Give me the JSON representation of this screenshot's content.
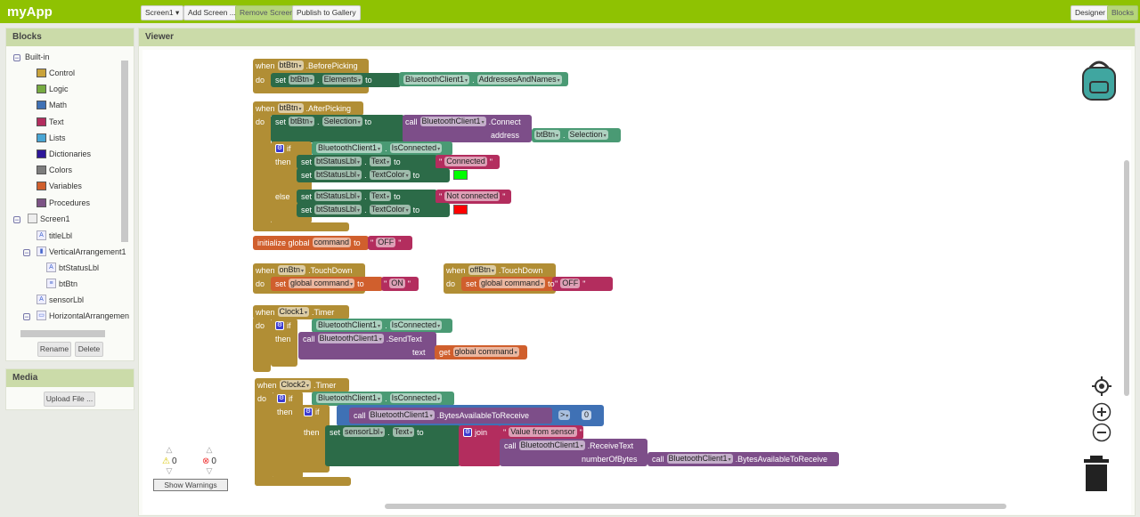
{
  "app": {
    "title": "myApp"
  },
  "toolbar": {
    "screen": "Screen1",
    "add_screen": "Add Screen ...",
    "remove_screen": "Remove Screen",
    "publish": "Publish to Gallery",
    "designer": "Designer",
    "blocks": "Blocks"
  },
  "blocks_panel": {
    "title": "Blocks",
    "builtin": "Built-in",
    "categories": [
      {
        "label": "Control",
        "color": "#c9a33b"
      },
      {
        "label": "Logic",
        "color": "#77ab41"
      },
      {
        "label": "Math",
        "color": "#3f71b5"
      },
      {
        "label": "Text",
        "color": "#b32d5e"
      },
      {
        "label": "Lists",
        "color": "#49a6d4"
      },
      {
        "label": "Dictionaries",
        "color": "#2d1799"
      },
      {
        "label": "Colors",
        "color": "#7d7d7d"
      },
      {
        "label": "Variables",
        "color": "#d05f2d"
      },
      {
        "label": "Procedures",
        "color": "#7c5385"
      }
    ],
    "screen": "Screen1",
    "components": [
      "titleLbl",
      "VerticalArrangement1",
      "btStatusLbl",
      "btBtn",
      "sensorLbl",
      "HorizontalArrangemen"
    ],
    "rename": "Rename",
    "delete": "Delete"
  },
  "media": {
    "title": "Media",
    "upload": "Upload File ..."
  },
  "viewer": {
    "title": "Viewer"
  },
  "warnings": {
    "warning_count": "0",
    "error_count": "0",
    "show_warnings": "Show Warnings"
  },
  "rows": [
    {
      "tokens": [
        [
          "kw",
          "when"
        ],
        [
          "dd",
          "btBtn"
        ],
        [
          "kw",
          ".BeforePicking"
        ]
      ]
    },
    {
      "tokens": [
        [
          "kw",
          "do"
        ]
      ]
    },
    {
      "tokens": [
        [
          "kw",
          "set"
        ],
        [
          "dd",
          "btBtn"
        ],
        [
          "kw",
          "."
        ],
        [
          "dd",
          "Elements"
        ],
        [
          "kw",
          "to"
        ]
      ]
    },
    {
      "tokens": [
        [
          "dd",
          "BluetoothClient1"
        ],
        [
          "kw",
          "."
        ],
        [
          "dd",
          "AddressesAndNames"
        ]
      ]
    },
    {
      "tokens": [
        [
          "kw",
          "when"
        ],
        [
          "dd",
          "btBtn"
        ],
        [
          "kw",
          ".AfterPicking"
        ]
      ]
    },
    {
      "tokens": [
        [
          "kw",
          "do"
        ]
      ]
    },
    {
      "tokens": [
        [
          "kw",
          "set"
        ],
        [
          "dd",
          "btBtn"
        ],
        [
          "kw",
          "."
        ],
        [
          "dd",
          "Selection"
        ],
        [
          "kw",
          "to"
        ]
      ]
    },
    {
      "tokens": [
        [
          "kw",
          "call"
        ],
        [
          "dd",
          "BluetoothClient1"
        ],
        [
          "kw",
          ".Connect"
        ]
      ]
    },
    {
      "tokens": [
        [
          "kw",
          "address"
        ]
      ]
    },
    {
      "tokens": [
        [
          "dd",
          "btBtn"
        ],
        [
          "kw",
          "."
        ],
        [
          "dd",
          "Selection"
        ]
      ]
    },
    {
      "tokens": [
        [
          "gear",
          ""
        ],
        [
          "kw",
          "if"
        ]
      ]
    },
    {
      "tokens": [
        [
          "dd",
          "BluetoothClient1"
        ],
        [
          "kw",
          "."
        ],
        [
          "dd",
          "IsConnected"
        ]
      ]
    },
    {
      "tokens": [
        [
          "kw",
          "then"
        ]
      ]
    },
    {
      "tokens": [
        [
          "kw",
          "set"
        ],
        [
          "dd",
          "btStatusLbl"
        ],
        [
          "kw",
          "."
        ],
        [
          "dd",
          "Text"
        ],
        [
          "kw",
          "to"
        ]
      ]
    },
    {
      "tokens": [
        [
          "kw",
          "\""
        ],
        [
          "str",
          "Connected"
        ],
        [
          "kw",
          "\""
        ]
      ]
    },
    {
      "tokens": [
        [
          "kw",
          "set"
        ],
        [
          "dd",
          "btStatusLbl"
        ],
        [
          "kw",
          "."
        ],
        [
          "dd",
          "TextColor"
        ],
        [
          "kw",
          "to"
        ]
      ]
    },
    {
      "tokens": [
        [
          "color",
          "#00ff00"
        ]
      ]
    },
    {
      "tokens": [
        [
          "kw",
          "else"
        ]
      ]
    },
    {
      "tokens": [
        [
          "kw",
          "set"
        ],
        [
          "dd",
          "btStatusLbl"
        ],
        [
          "kw",
          "."
        ],
        [
          "dd",
          "Text"
        ],
        [
          "kw",
          "to"
        ]
      ]
    },
    {
      "tokens": [
        [
          "kw",
          "\""
        ],
        [
          "str",
          "Not connected"
        ],
        [
          "kw",
          "\""
        ]
      ]
    },
    {
      "tokens": [
        [
          "kw",
          "set"
        ],
        [
          "dd",
          "btStatusLbl"
        ],
        [
          "kw",
          "."
        ],
        [
          "dd",
          "TextColor"
        ],
        [
          "kw",
          "to"
        ]
      ]
    },
    {
      "tokens": [
        [
          "color",
          "#ff0000"
        ]
      ]
    },
    {
      "tokens": [
        [
          "kw",
          "initialize global"
        ],
        [
          "str",
          "command"
        ],
        [
          "kw",
          "to"
        ]
      ]
    },
    {
      "tokens": [
        [
          "kw",
          "\""
        ],
        [
          "str",
          "OFF"
        ],
        [
          "kw",
          "\""
        ]
      ]
    },
    {
      "tokens": [
        [
          "kw",
          "when"
        ],
        [
          "dd",
          "onBtn"
        ],
        [
          "kw",
          ".TouchDown"
        ]
      ]
    },
    {
      "tokens": [
        [
          "kw",
          "do"
        ]
      ]
    },
    {
      "tokens": [
        [
          "kw",
          "set"
        ],
        [
          "dd",
          "global command"
        ],
        [
          "kw",
          "to"
        ]
      ]
    },
    {
      "tokens": [
        [
          "kw",
          "\""
        ],
        [
          "str",
          "ON"
        ],
        [
          "kw",
          "\""
        ]
      ]
    },
    {
      "tokens": [
        [
          "kw",
          "when"
        ],
        [
          "dd",
          "offBtn"
        ],
        [
          "kw",
          ".TouchDown"
        ]
      ]
    },
    {
      "tokens": [
        [
          "kw",
          "do"
        ]
      ]
    },
    {
      "tokens": [
        [
          "kw",
          "set"
        ],
        [
          "dd",
          "global command"
        ],
        [
          "kw",
          "to"
        ]
      ]
    },
    {
      "tokens": [
        [
          "kw",
          "\""
        ],
        [
          "str",
          "OFF"
        ],
        [
          "kw",
          "\""
        ]
      ]
    },
    {
      "tokens": [
        [
          "kw",
          "when"
        ],
        [
          "dd",
          "Clock1"
        ],
        [
          "kw",
          ".Timer"
        ]
      ]
    },
    {
      "tokens": [
        [
          "kw",
          "do"
        ]
      ]
    },
    {
      "tokens": [
        [
          "gear",
          ""
        ],
        [
          "kw",
          "if"
        ]
      ]
    },
    {
      "tokens": [
        [
          "dd",
          "BluetoothClient1"
        ],
        [
          "kw",
          "."
        ],
        [
          "dd",
          "IsConnected"
        ]
      ]
    },
    {
      "tokens": [
        [
          "kw",
          "then"
        ]
      ]
    },
    {
      "tokens": [
        [
          "kw",
          "call"
        ],
        [
          "dd",
          "BluetoothClient1"
        ],
        [
          "kw",
          ".SendText"
        ]
      ]
    },
    {
      "tokens": [
        [
          "kw",
          "text"
        ]
      ]
    },
    {
      "tokens": [
        [
          "kw",
          "get"
        ],
        [
          "dd",
          "global command"
        ]
      ]
    },
    {
      "tokens": [
        [
          "kw",
          "when"
        ],
        [
          "dd",
          "Clock2"
        ],
        [
          "kw",
          ".Timer"
        ]
      ]
    },
    {
      "tokens": [
        [
          "kw",
          "do"
        ]
      ]
    },
    {
      "tokens": [
        [
          "gear",
          ""
        ],
        [
          "kw",
          "if"
        ]
      ]
    },
    {
      "tokens": [
        [
          "dd",
          "BluetoothClient1"
        ],
        [
          "kw",
          "."
        ],
        [
          "dd",
          "IsConnected"
        ]
      ]
    },
    {
      "tokens": [
        [
          "kw",
          "then"
        ]
      ]
    },
    {
      "tokens": [
        [
          "gear",
          ""
        ],
        [
          "kw",
          "if"
        ]
      ]
    },
    {
      "tokens": [
        [
          "dd",
          ">"
        ]
      ]
    },
    {
      "tokens": [
        [
          "num",
          "0"
        ]
      ]
    },
    {
      "tokens": [
        [
          "kw",
          "call"
        ],
        [
          "dd",
          "BluetoothClient1"
        ],
        [
          "kw",
          ".BytesAvailableToReceive"
        ]
      ]
    },
    {
      "tokens": [
        [
          "kw",
          "then"
        ]
      ]
    },
    {
      "tokens": [
        [
          "kw",
          "set"
        ],
        [
          "dd",
          "sensorLbl"
        ],
        [
          "kw",
          "."
        ],
        [
          "dd",
          "Text"
        ],
        [
          "kw",
          "to"
        ]
      ]
    },
    {
      "tokens": [
        [
          "gear",
          ""
        ],
        [
          "kw",
          "join"
        ]
      ]
    },
    {
      "tokens": [
        [
          "kw",
          "\""
        ],
        [
          "str",
          "Value from sensor"
        ],
        [
          "kw",
          "\""
        ]
      ]
    },
    {
      "tokens": [
        [
          "kw",
          "call"
        ],
        [
          "dd",
          "BluetoothClient1"
        ],
        [
          "kw",
          ".ReceiveText"
        ]
      ]
    },
    {
      "tokens": [
        [
          "kw",
          "numberOfBytes"
        ]
      ]
    },
    {
      "tokens": [
        [
          "kw",
          "call"
        ],
        [
          "dd",
          "BluetoothClient1"
        ],
        [
          "kw",
          ".BytesAvailableToReceive"
        ]
      ]
    }
  ]
}
